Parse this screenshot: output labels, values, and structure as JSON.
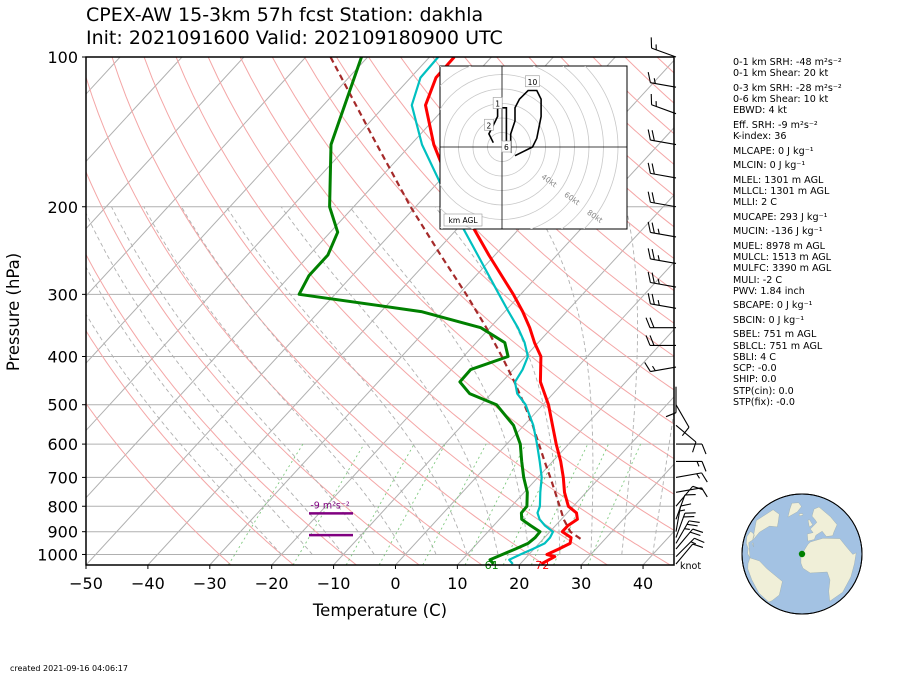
{
  "title": {
    "line1": "CPEX-AW 15-3km  57h fcst  Station: dakhla",
    "line2": "Init: 2021091600  Valid: 202109180900 UTC"
  },
  "footer": "created 2021-09-16 04:06:17",
  "indices": [
    {
      "text": "0-1 km SRH: -48 m²s⁻²"
    },
    {
      "text": "0-1 km Shear: 20 kt"
    },
    {
      "text": "0-3 km SRH: -28 m²s⁻²",
      "gap": true
    },
    {
      "text": "0-6 km Shear: 10 kt"
    },
    {
      "text": "EBWD: 4 kt"
    },
    {
      "text": "Eff. SRH: -9 m²s⁻²",
      "gap": true
    },
    {
      "text": "K-index: 36"
    },
    {
      "text": "MLCAPE: 0 J kg⁻¹",
      "gap": true
    },
    {
      "text": "MLCIN: 0 J kg⁻¹",
      "gap": true
    },
    {
      "text": "MLEL: 1301 m AGL",
      "gap": true
    },
    {
      "text": "MLLCL: 1301 m AGL"
    },
    {
      "text": "MLLI: 2 C"
    },
    {
      "text": "MUCAPE: 293 J kg⁻¹",
      "gap": true
    },
    {
      "text": "MUCIN: -136 J kg⁻¹",
      "gap": true
    },
    {
      "text": "MUEL: 8978 m AGL",
      "gap": true
    },
    {
      "text": "MULCL: 1513 m AGL"
    },
    {
      "text": "MULFC: 3390 m AGL"
    },
    {
      "text": "MULI: -2 C"
    },
    {
      "text": "PWV: 1.84 inch"
    },
    {
      "text": "SBCAPE: 0 J kg⁻¹",
      "gap": true
    },
    {
      "text": "SBCIN: 0 J kg⁻¹",
      "gap": true
    },
    {
      "text": "SBEL: 751 m AGL",
      "gap": true
    },
    {
      "text": "SBLCL: 751 m AGL"
    },
    {
      "text": "SBLI: 4 C"
    },
    {
      "text": "SCP: -0.0"
    },
    {
      "text": "SHIP: 0.0"
    },
    {
      "text": "STP(cin): 0.0"
    },
    {
      "text": "STP(fix): -0.0"
    }
  ],
  "chart_data": {
    "type": "line",
    "chart_kind": "skew-t log-p",
    "xlabel": "Temperature (C)",
    "ylabel": "Pressure (hPa)",
    "xlim": [
      -50,
      45
    ],
    "ylim": [
      1050,
      100
    ],
    "y_scale": "log",
    "xticks": [
      -50,
      -40,
      -30,
      -20,
      -10,
      0,
      10,
      20,
      30,
      40
    ],
    "yticks": [
      1000,
      900,
      800,
      700,
      600,
      500,
      400,
      300,
      200,
      100
    ],
    "isotherm_step_c": 10,
    "colors": {
      "temperature": "#ff0000",
      "dewpoint": "#008000",
      "wetbulb": "#00c0c0",
      "parcel": "#a52a2a",
      "dry_adiabat": "#f4a6a6",
      "moist_adiabat": "#b0b0b0",
      "mixing_ratio": "#7fc97f",
      "isobar": "#b0b0b0",
      "srh_marker": "#800080"
    },
    "series": [
      {
        "name": "temperature",
        "points": [
          [
            1045,
            23.4
          ],
          [
            1010,
            24.5
          ],
          [
            1000,
            22.9
          ],
          [
            975,
            24.0
          ],
          [
            950,
            25.0
          ],
          [
            925,
            24.3
          ],
          [
            900,
            22.0
          ],
          [
            875,
            22.0
          ],
          [
            850,
            22.6
          ],
          [
            825,
            21.5
          ],
          [
            800,
            19.2
          ],
          [
            750,
            16.5
          ],
          [
            700,
            14.1
          ],
          [
            650,
            11.3
          ],
          [
            600,
            8.0
          ],
          [
            550,
            4.6
          ],
          [
            500,
            0.9
          ],
          [
            450,
            -3.8
          ],
          [
            400,
            -7.5
          ],
          [
            375,
            -10.6
          ],
          [
            350,
            -13.6
          ],
          [
            325,
            -17.1
          ],
          [
            300,
            -21.2
          ],
          [
            250,
            -31.0
          ],
          [
            200,
            -42.6
          ],
          [
            175,
            -49.2
          ],
          [
            150,
            -56.3
          ],
          [
            125,
            -63.5
          ],
          [
            110,
            -65.9
          ],
          [
            100,
            -66.0
          ]
        ]
      },
      {
        "name": "dewpoint",
        "points": [
          [
            1045,
            15.7
          ],
          [
            1025,
            14.5
          ],
          [
            1000,
            15.7
          ],
          [
            975,
            17.0
          ],
          [
            950,
            18.2
          ],
          [
            925,
            18.5
          ],
          [
            900,
            18.4
          ],
          [
            875,
            16.0
          ],
          [
            850,
            13.6
          ],
          [
            825,
            12.6
          ],
          [
            800,
            12.5
          ],
          [
            750,
            10.5
          ],
          [
            700,
            7.7
          ],
          [
            650,
            5.0
          ],
          [
            600,
            2.2
          ],
          [
            550,
            -1.7
          ],
          [
            500,
            -7.5
          ],
          [
            475,
            -13.5
          ],
          [
            450,
            -16.8
          ],
          [
            425,
            -16.9
          ],
          [
            400,
            -12.8
          ],
          [
            375,
            -15.4
          ],
          [
            350,
            -21.5
          ],
          [
            325,
            -33.5
          ],
          [
            300,
            -55.8
          ],
          [
            275,
            -57.0
          ],
          [
            250,
            -57.0
          ],
          [
            225,
            -58.8
          ],
          [
            200,
            -63.9
          ],
          [
            150,
            -72.9
          ],
          [
            100,
            -81.0
          ]
        ]
      },
      {
        "name": "wetbulb",
        "points": [
          [
            1045,
            18.8
          ],
          [
            1025,
            17.6
          ],
          [
            1000,
            18.6
          ],
          [
            975,
            19.8
          ],
          [
            950,
            20.9
          ],
          [
            925,
            20.9
          ],
          [
            900,
            20.5
          ],
          [
            875,
            18.3
          ],
          [
            850,
            16.5
          ],
          [
            825,
            15.2
          ],
          [
            800,
            14.6
          ],
          [
            750,
            12.6
          ],
          [
            700,
            10.6
          ],
          [
            650,
            7.9
          ],
          [
            600,
            4.9
          ],
          [
            550,
            1.5
          ],
          [
            500,
            -2.8
          ],
          [
            475,
            -5.8
          ],
          [
            450,
            -7.9
          ],
          [
            425,
            -8.5
          ],
          [
            400,
            -9.6
          ],
          [
            375,
            -12.2
          ],
          [
            350,
            -15.5
          ],
          [
            325,
            -19.4
          ],
          [
            300,
            -23.5
          ],
          [
            250,
            -32.8
          ],
          [
            200,
            -44.2
          ],
          [
            150,
            -58.2
          ],
          [
            125,
            -65.7
          ],
          [
            110,
            -68.4
          ],
          [
            100,
            -68.6
          ]
        ]
      },
      {
        "name": "parcel",
        "points": [
          [
            930,
            26.0
          ],
          [
            900,
            23.3
          ],
          [
            850,
            20.4
          ],
          [
            800,
            17.8
          ],
          [
            750,
            15.0
          ],
          [
            700,
            12.0
          ],
          [
            650,
            8.7
          ],
          [
            600,
            5.2
          ],
          [
            550,
            1.4
          ],
          [
            500,
            -3.0
          ],
          [
            450,
            -8.0
          ],
          [
            400,
            -13.8
          ],
          [
            350,
            -20.6
          ],
          [
            300,
            -28.8
          ],
          [
            250,
            -38.8
          ],
          [
            200,
            -50.8
          ],
          [
            150,
            -65.5
          ],
          [
            100,
            -86.0
          ]
        ]
      }
    ],
    "annotations": {
      "surface_temperature_f": "72",
      "surface_dewpoint_f": "61",
      "effective_srh_label": "-9 m²s⁻²",
      "effective_layer_hpa": [
        940,
        850
      ],
      "wind_units": "knot"
    },
    "wind_barbs": [
      {
        "p": 1045,
        "spd": 10,
        "dir": 40
      },
      {
        "p": 1010,
        "spd": 15,
        "dir": 45
      },
      {
        "p": 975,
        "spd": 20,
        "dir": 40
      },
      {
        "p": 950,
        "spd": 25,
        "dir": 30
      },
      {
        "p": 925,
        "spd": 20,
        "dir": 20
      },
      {
        "p": 900,
        "spd": 15,
        "dir": 10
      },
      {
        "p": 850,
        "spd": 10,
        "dir": 20
      },
      {
        "p": 800,
        "spd": 10,
        "dir": 40
      },
      {
        "p": 750,
        "spd": 10,
        "dir": 80
      },
      {
        "p": 700,
        "spd": 15,
        "dir": 80
      },
      {
        "p": 650,
        "spd": 15,
        "dir": 90
      },
      {
        "p": 600,
        "spd": 10,
        "dir": 90
      },
      {
        "p": 550,
        "spd": 10,
        "dir": 130
      },
      {
        "p": 500,
        "spd": 10,
        "dir": 150
      },
      {
        "p": 460,
        "spd": 10,
        "dir": 180
      },
      {
        "p": 420,
        "spd": 15,
        "dir": 260
      },
      {
        "p": 380,
        "spd": 20,
        "dir": 270
      },
      {
        "p": 350,
        "spd": 20,
        "dir": 270
      },
      {
        "p": 320,
        "spd": 25,
        "dir": 280
      },
      {
        "p": 290,
        "spd": 25,
        "dir": 280
      },
      {
        "p": 260,
        "spd": 25,
        "dir": 280
      },
      {
        "p": 230,
        "spd": 25,
        "dir": 280
      },
      {
        "p": 200,
        "spd": 20,
        "dir": 280
      },
      {
        "p": 175,
        "spd": 20,
        "dir": 280
      },
      {
        "p": 150,
        "spd": 20,
        "dir": 280
      },
      {
        "p": 130,
        "spd": 15,
        "dir": 290
      },
      {
        "p": 115,
        "spd": 15,
        "dir": 280
      },
      {
        "p": 100,
        "spd": 15,
        "dir": 290
      }
    ],
    "hodograph": {
      "ring_labels": [
        "40kt",
        "60kt",
        "80kt"
      ],
      "legend": "km AGL",
      "height_labels": [
        {
          "label": "1",
          "u": -1,
          "v": 10
        },
        {
          "label": "2",
          "u": -3,
          "v": 5
        },
        {
          "label": "6",
          "u": 1,
          "v": 0
        },
        {
          "label": "10",
          "u": 7,
          "v": 15
        }
      ],
      "trace": [
        [
          -2,
          1
        ],
        [
          -3,
          3
        ],
        [
          -2,
          5
        ],
        [
          -1,
          7
        ],
        [
          -1,
          9
        ],
        [
          0,
          9
        ],
        [
          1,
          9
        ],
        [
          1,
          7
        ],
        [
          1,
          5
        ],
        [
          1,
          3
        ],
        [
          1,
          1
        ],
        [
          1,
          0
        ],
        [
          2,
          -1
        ],
        [
          2,
          1
        ],
        [
          2,
          3
        ],
        [
          3,
          6
        ],
        [
          3,
          9
        ],
        [
          4,
          11
        ],
        [
          6,
          13
        ],
        [
          8,
          13
        ],
        [
          9,
          11
        ],
        [
          9,
          7
        ],
        [
          8,
          2
        ],
        [
          7,
          0
        ],
        [
          5,
          -1
        ],
        [
          3,
          -2
        ]
      ]
    }
  },
  "globe": {
    "lat": 23.7,
    "lon": -15.9,
    "ocean": "#a3c2e3",
    "land": "#f0efd8"
  }
}
